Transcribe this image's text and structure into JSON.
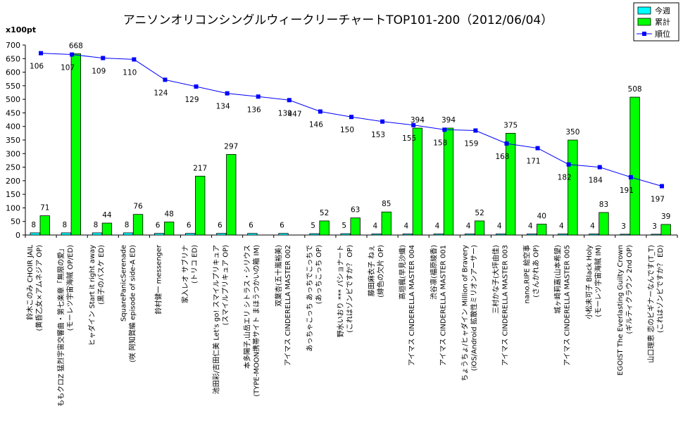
{
  "chart_data": {
    "type": "bar",
    "title": "アニソンオリコンシングルウィークリーチャートTOP101-200（2012/06/04）",
    "ylabel": "x100pt",
    "ylim": [
      0,
      700
    ],
    "yticks": [
      0,
      50,
      100,
      150,
      200,
      250,
      300,
      350,
      400,
      450,
      500,
      550,
      600,
      650,
      700
    ],
    "grid": false,
    "legend_position": "top-right",
    "colors": {
      "weekly": "#00ffff",
      "cumulative": "#00ff00",
      "rank": "#0000ff"
    },
    "categories": [
      [
        "鈴木このみ CHOIR JAIL",
        "(黄昏乙女×アムネジア OP)"
      ],
      [
        "ももクロZ 猛烈宇宙交響曲・第七楽章「無限の愛」",
        "(モーレツ宇宙海賊 OP/ED)"
      ],
      [
        "ヒャダイン Start it right away",
        "(黒子のバスケ ED)"
      ],
      [
        "SquarePanicSerenade",
        "(咲 阿知賀編 episode of side-A ED)"
      ],
      [
        "鈴村健一 messenger"
      ],
      [
        "家入レオ サブリナ",
        "(トリコ ED)"
      ],
      [
        "池田彩/吉田仁美 Let's go! スマイルプリキュア",
        "(スマイルプリキュア OP)"
      ],
      [
        "本多陽子,山岳エリ シトラス・シリウス",
        "(TYPE-MOON携帯サイト まほうつかいの箱 IM)"
      ],
      [
        "双葉杏(五十嵐裕美)",
        "アイマス CINDERELLA MASTER 002"
      ],
      [
        "あっちゃこっち あっちでこっちで",
        "(あっちこっち OP)"
      ],
      [
        "野水いおり *** パショナート",
        "(これはゾンビですか？ OP)"
      ],
      [
        "藤田麻衣子 ねぇ",
        "(緋色の欠片 OP)"
      ],
      [
        "高垣楓(早見沙織)",
        "アイマス CINDERELLA MASTER 004"
      ],
      [
        "渋谷凛(福原綾香)",
        "アイマス CINDERELLA MASTER 001"
      ],
      [
        "ちょうちょ/ヒャダイン Million of Bravery",
        "(iOS/Android 拡散性ミリオンアーサー)"
      ],
      [
        "三村かな子(大坪由佳)",
        "アイマス CINDERELLA MASTER 003"
      ],
      [
        "nano.RIPE 絵空事",
        "(さんかれあ OP)"
      ],
      [
        "城ヶ崎莉嘉(山本希望)",
        "アイマス CINDERELLA MASTER 005"
      ],
      [
        "小松未可子 Black Holy",
        "(モーレツ宇宙海賊 IM)"
      ],
      [
        "EGOIST The Everlasting Guilty Crown",
        "(ギルティクラウン 2nd OP)"
      ],
      [
        "山口理恵 恋のビギナーなんです(T_T)",
        "(これはゾンビですか？ ED)"
      ]
    ],
    "series": [
      {
        "name": "今週",
        "type": "bar",
        "values": [
          8,
          8,
          8,
          8,
          6,
          6,
          6,
          6,
          6,
          5,
          5,
          4,
          4,
          4,
          4,
          4,
          4,
          4,
          4,
          3,
          3
        ]
      },
      {
        "name": "累計",
        "type": "bar",
        "values": [
          71,
          668,
          44,
          76,
          48,
          217,
          297,
          null,
          null,
          52,
          63,
          85,
          394,
          394,
          52,
          375,
          40,
          350,
          83,
          508,
          39
        ]
      },
      {
        "name": "順位",
        "type": "line",
        "values": [
          106,
          107,
          109,
          110,
          124,
          129,
          134,
          136,
          139,
          146,
          150,
          153,
          155,
          158,
          159,
          168,
          171,
          182,
          184,
          191,
          197
        ],
        "plotted_heights": [
          670,
          665,
          652,
          647,
          572,
          547,
          522,
          510,
          497,
          455,
          435,
          418,
          405,
          388,
          385,
          337,
          320,
          260,
          250,
          213,
          180
        ]
      }
    ],
    "extra_cumulative_labels": [
      {
        "index": 8,
        "value": 447
      }
    ]
  }
}
